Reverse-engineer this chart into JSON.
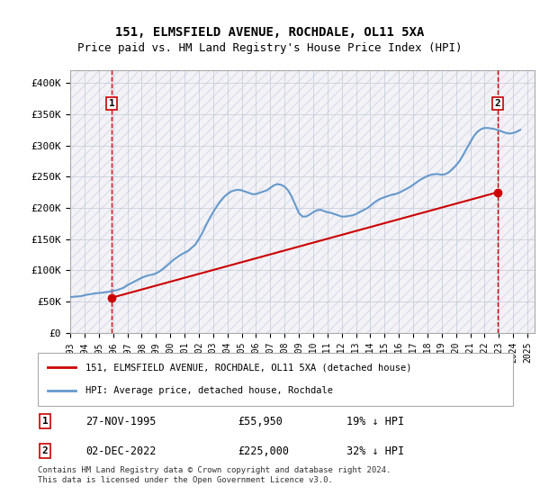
{
  "title_line1": "151, ELMSFIELD AVENUE, ROCHDALE, OL11 5XA",
  "title_line2": "Price paid vs. HM Land Registry's House Price Index (HPI)",
  "ylabel_ticks": [
    "£0",
    "£50K",
    "£100K",
    "£150K",
    "£200K",
    "£250K",
    "£300K",
    "£350K",
    "£400K"
  ],
  "ytick_values": [
    0,
    50000,
    100000,
    150000,
    200000,
    250000,
    300000,
    350000,
    400000
  ],
  "ylim": [
    0,
    420000
  ],
  "xlim_start": 1993.0,
  "xlim_end": 2025.5,
  "xtick_years": [
    1993,
    1994,
    1995,
    1996,
    1997,
    1998,
    1999,
    2000,
    2001,
    2002,
    2003,
    2004,
    2005,
    2006,
    2007,
    2008,
    2009,
    2010,
    2011,
    2012,
    2013,
    2014,
    2015,
    2016,
    2017,
    2018,
    2019,
    2020,
    2021,
    2022,
    2023,
    2024,
    2025
  ],
  "hpi_color": "#6699cc",
  "price_color": "#cc0000",
  "marker1_color": "#cc0000",
  "marker2_color": "#cc0000",
  "bg_hatch_color": "#e8e8f0",
  "grid_color": "#c0c8d8",
  "sale1_x": 1995.9,
  "sale1_y": 55950,
  "sale1_label": "1",
  "sale1_date": "27-NOV-1995",
  "sale1_price": "£55,950",
  "sale1_hpi": "19% ↓ HPI",
  "sale2_x": 2022.92,
  "sale2_y": 225000,
  "sale2_label": "2",
  "sale2_date": "02-DEC-2022",
  "sale2_price": "£225,000",
  "sale2_hpi": "32% ↓ HPI",
  "vline1_x": 1995.9,
  "vline2_x": 2022.92,
  "legend_line1": "151, ELMSFIELD AVENUE, ROCHDALE, OL11 5XA (detached house)",
  "legend_line2": "HPI: Average price, detached house, Rochdale",
  "footnote": "Contains HM Land Registry data © Crown copyright and database right 2024.\nThis data is licensed under the Open Government Licence v3.0.",
  "hpi_data_x": [
    1993.0,
    1993.25,
    1993.5,
    1993.75,
    1994.0,
    1994.25,
    1994.5,
    1994.75,
    1995.0,
    1995.25,
    1995.5,
    1995.75,
    1996.0,
    1996.25,
    1996.5,
    1996.75,
    1997.0,
    1997.25,
    1997.5,
    1997.75,
    1998.0,
    1998.25,
    1998.5,
    1998.75,
    1999.0,
    1999.25,
    1999.5,
    1999.75,
    2000.0,
    2000.25,
    2000.5,
    2000.75,
    2001.0,
    2001.25,
    2001.5,
    2001.75,
    2002.0,
    2002.25,
    2002.5,
    2002.75,
    2003.0,
    2003.25,
    2003.5,
    2003.75,
    2004.0,
    2004.25,
    2004.5,
    2004.75,
    2005.0,
    2005.25,
    2005.5,
    2005.75,
    2006.0,
    2006.25,
    2006.5,
    2006.75,
    2007.0,
    2007.25,
    2007.5,
    2007.75,
    2008.0,
    2008.25,
    2008.5,
    2008.75,
    2009.0,
    2009.25,
    2009.5,
    2009.75,
    2010.0,
    2010.25,
    2010.5,
    2010.75,
    2011.0,
    2011.25,
    2011.5,
    2011.75,
    2012.0,
    2012.25,
    2012.5,
    2012.75,
    2013.0,
    2013.25,
    2013.5,
    2013.75,
    2014.0,
    2014.25,
    2014.5,
    2014.75,
    2015.0,
    2015.25,
    2015.5,
    2015.75,
    2016.0,
    2016.25,
    2016.5,
    2016.75,
    2017.0,
    2017.25,
    2017.5,
    2017.75,
    2018.0,
    2018.25,
    2018.5,
    2018.75,
    2019.0,
    2019.25,
    2019.5,
    2019.75,
    2020.0,
    2020.25,
    2020.5,
    2020.75,
    2021.0,
    2021.25,
    2021.5,
    2021.75,
    2022.0,
    2022.25,
    2022.5,
    2022.75,
    2023.0,
    2023.25,
    2023.5,
    2023.75,
    2024.0,
    2024.25,
    2024.5
  ],
  "hpi_data_y": [
    57000,
    57500,
    58000,
    58500,
    60000,
    61000,
    62000,
    63000,
    63500,
    64000,
    65000,
    65500,
    67000,
    68000,
    70000,
    72000,
    76000,
    79000,
    82000,
    85000,
    88000,
    90000,
    92000,
    93000,
    95000,
    98000,
    102000,
    107000,
    112000,
    117000,
    121000,
    125000,
    128000,
    131000,
    136000,
    141000,
    150000,
    160000,
    172000,
    183000,
    193000,
    202000,
    210000,
    217000,
    222000,
    226000,
    228000,
    229000,
    228000,
    226000,
    224000,
    222000,
    222000,
    224000,
    226000,
    228000,
    232000,
    236000,
    238000,
    237000,
    234000,
    228000,
    218000,
    205000,
    192000,
    186000,
    186000,
    189000,
    193000,
    196000,
    197000,
    195000,
    193000,
    192000,
    190000,
    188000,
    186000,
    186000,
    187000,
    188000,
    190000,
    193000,
    196000,
    199000,
    203000,
    208000,
    212000,
    215000,
    217000,
    219000,
    221000,
    222000,
    224000,
    227000,
    230000,
    233000,
    237000,
    241000,
    245000,
    248000,
    251000,
    253000,
    254000,
    254000,
    253000,
    254000,
    257000,
    262000,
    268000,
    275000,
    285000,
    295000,
    305000,
    315000,
    322000,
    326000,
    328000,
    328000,
    327000,
    326000,
    324000,
    322000,
    320000,
    319000,
    320000,
    322000,
    325000
  ],
  "price_data_x": [
    1995.9,
    2022.92
  ],
  "price_data_y": [
    55950,
    225000
  ]
}
